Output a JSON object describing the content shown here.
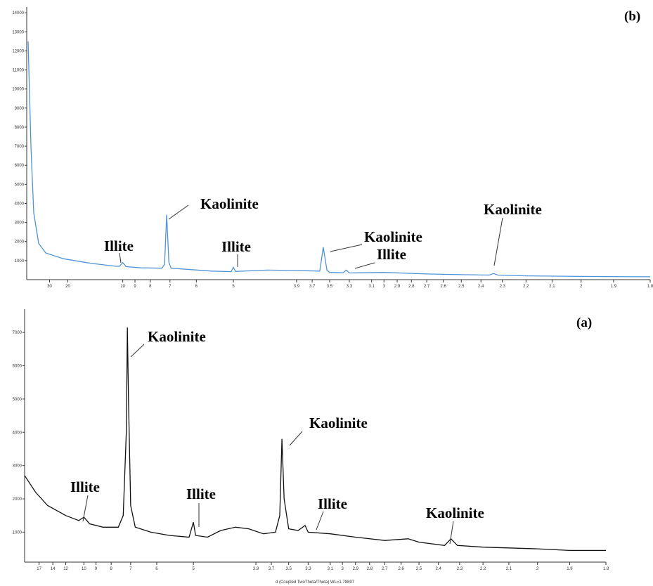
{
  "chart_data": [
    {
      "type": "line",
      "title": "(b)",
      "wavelength": 1.78897,
      "color": "#4f94d8",
      "x": [
        72.7,
        61.2,
        52.8,
        42.7,
        33.5,
        21.8,
        13.97,
        10.64,
        10.3,
        10.0,
        9.7,
        8.59,
        7.38,
        7.25,
        7.15,
        7.05,
        6.95,
        5.55,
        5.05,
        5.0,
        4.95,
        4.33,
        3.92,
        3.61,
        3.57,
        3.53,
        3.5,
        3.36,
        3.33,
        3.3,
        3.0,
        2.7,
        2.5,
        2.36,
        2.34,
        2.32,
        2.2,
        2.0,
        1.8
      ],
      "values": [
        12500,
        7000,
        3500,
        1900,
        1400,
        1100,
        850,
        700,
        700,
        900,
        680,
        620,
        600,
        800,
        3400,
        900,
        600,
        450,
        420,
        650,
        430,
        500,
        480,
        450,
        1700,
        500,
        380,
        360,
        500,
        350,
        380,
        300,
        260,
        240,
        320,
        240,
        200,
        170,
        150
      ],
      "xlim": [
        80,
        1.8
      ],
      "ylim": [
        0,
        14300
      ],
      "xticks": [
        30,
        20,
        10,
        9,
        8,
        7,
        6,
        5,
        3.9,
        3.7,
        3.5,
        3.3,
        3.1,
        3,
        2.9,
        2.8,
        2.7,
        2.6,
        2.5,
        2.4,
        2.3,
        2.2,
        2.1,
        2,
        1.9,
        1.8
      ],
      "yticks": [
        1000,
        2000,
        3000,
        4000,
        5000,
        6000,
        7000,
        8000,
        9000,
        10000,
        11000,
        12000,
        13000,
        14000
      ],
      "annotations": [
        "Kaolinite",
        "Illite",
        "Illite",
        "Kaolinite",
        "Illite",
        "Kaolinite"
      ]
    },
    {
      "type": "line",
      "title": "(a)",
      "wavelength": 1.78897,
      "color": "#111111",
      "xlabel": "d (Coupled TwoTheta/Theta) WL=1.78897",
      "x": [
        22,
        18,
        15,
        12,
        10.5,
        10.0,
        9.5,
        8.5,
        7.6,
        7.35,
        7.2,
        7.15,
        7.1,
        7.0,
        6.8,
        6.2,
        5.6,
        5.1,
        5.0,
        4.95,
        4.7,
        4.45,
        4.2,
        4.0,
        3.8,
        3.65,
        3.6,
        3.575,
        3.55,
        3.5,
        3.4,
        3.33,
        3.3,
        3.1,
        2.9,
        2.7,
        2.56,
        2.5,
        2.37,
        2.34,
        2.31,
        2.2,
        2.0,
        1.9,
        1.8
      ],
      "values": [
        2700,
        2200,
        1800,
        1500,
        1350,
        1450,
        1250,
        1150,
        1150,
        1500,
        4000,
        7150,
        5000,
        1800,
        1150,
        1000,
        900,
        850,
        1300,
        900,
        850,
        1050,
        1150,
        1100,
        950,
        1000,
        1500,
        3800,
        2000,
        1100,
        1050,
        1200,
        1000,
        950,
        850,
        750,
        800,
        700,
        600,
        800,
        600,
        550,
        500,
        450,
        450
      ],
      "xlim": [
        22,
        1.8
      ],
      "ylim": [
        100,
        7700
      ],
      "xticks": [
        17,
        14,
        12,
        10,
        9,
        8,
        7,
        6,
        5,
        3.9,
        3.7,
        3.5,
        3.3,
        3.1,
        3,
        2.9,
        2.8,
        2.7,
        2.6,
        2.5,
        2.4,
        2.3,
        2.2,
        2.1,
        2,
        1.9,
        1.8
      ],
      "yticks": [
        1000,
        2000,
        3000,
        4000,
        5000,
        6000,
        7000
      ],
      "annotations": [
        "Kaolinite",
        "Illite",
        "Illite",
        "Kaolinite",
        "Illite",
        "Kaolinite"
      ]
    }
  ]
}
